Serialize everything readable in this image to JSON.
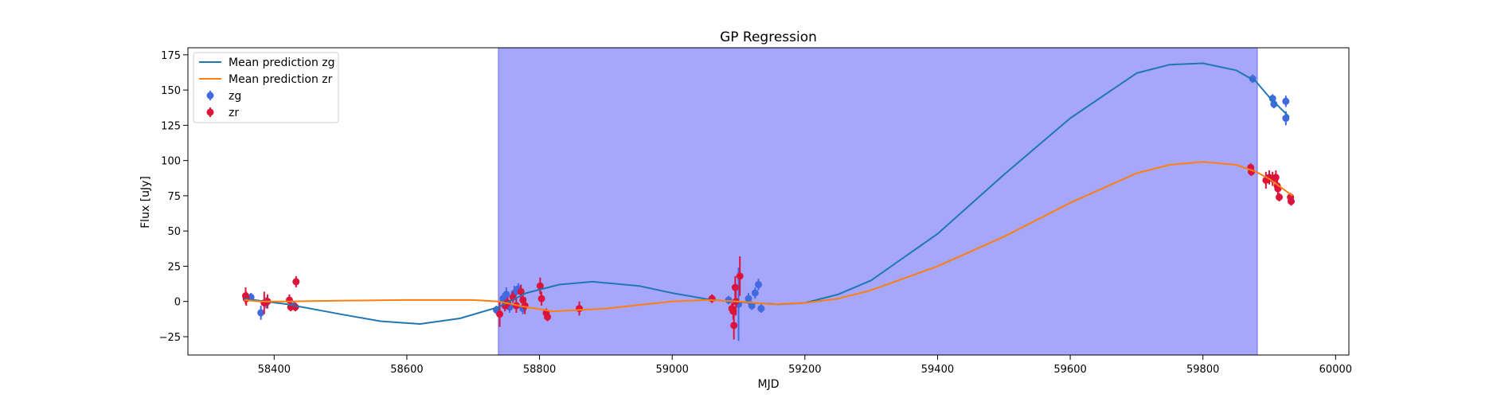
{
  "chart_data": {
    "type": "line",
    "title": "GP Regression",
    "xlabel": "MJD",
    "ylabel": "Flux [uJy]",
    "xlim": [
      58270,
      60020
    ],
    "ylim": [
      -38,
      180
    ],
    "xticks": [
      58400,
      58600,
      58800,
      59000,
      59200,
      59400,
      59600,
      59800,
      60000
    ],
    "xtick_labels": [
      "58400",
      "58600",
      "58800",
      "59000",
      "59200",
      "59400",
      "59600",
      "59800",
      "60000"
    ],
    "yticks": [
      -25,
      0,
      25,
      50,
      75,
      100,
      125,
      150,
      175
    ],
    "ytick_labels": [
      "−25",
      "0",
      "25",
      "50",
      "75",
      "100",
      "125",
      "150",
      "175"
    ],
    "grid": false,
    "legend_position": "top-left",
    "shaded_region": {
      "x": [
        58738,
        59882
      ],
      "color": "#a6a6fb"
    },
    "series": [
      {
        "name": "Mean prediction zg",
        "kind": "line",
        "color": "#1f77b4",
        "x": [
          58355,
          58420,
          58500,
          58560,
          58620,
          58680,
          58738,
          58780,
          58830,
          58880,
          58950,
          59000,
          59060,
          59120,
          59160,
          59200,
          59250,
          59300,
          59400,
          59500,
          59600,
          59700,
          59750,
          59800,
          59850,
          59880,
          59900,
          59930
        ],
        "y": [
          2,
          -2,
          -9,
          -14,
          -16,
          -12,
          -4,
          6,
          12,
          14,
          11,
          6,
          1,
          -1,
          -2,
          -1,
          5,
          15,
          48,
          90,
          130,
          162,
          168,
          169,
          164,
          156,
          145,
          131
        ]
      },
      {
        "name": "Mean prediction zr",
        "kind": "line",
        "color": "#ff7f0e",
        "x": [
          58355,
          58380,
          58420,
          58500,
          58600,
          58700,
          58738,
          58780,
          58820,
          58900,
          58960,
          59000,
          59050,
          59100,
          59150,
          59200,
          59250,
          59300,
          59400,
          59500,
          59600,
          59700,
          59750,
          59800,
          59850,
          59880,
          59900,
          59935
        ],
        "y": [
          1,
          0,
          0,
          0.5,
          1,
          1,
          0,
          -4,
          -7,
          -5,
          -2,
          0,
          1,
          0,
          -2,
          -1,
          2,
          8,
          25,
          46,
          70,
          91,
          97,
          99,
          97,
          92,
          87,
          75
        ]
      },
      {
        "name": "zg",
        "kind": "errorbar",
        "color": "#4169e1",
        "points": [
          {
            "x": 58365,
            "y": 3,
            "err": 3
          },
          {
            "x": 58380,
            "y": -8,
            "err": 5
          },
          {
            "x": 58388,
            "y": -1,
            "err": 4
          },
          {
            "x": 58430,
            "y": -3,
            "err": 3
          },
          {
            "x": 58735,
            "y": -6,
            "err": 3
          },
          {
            "x": 58745,
            "y": 2,
            "err": 4
          },
          {
            "x": 58750,
            "y": 5,
            "err": 5
          },
          {
            "x": 58755,
            "y": -4,
            "err": 4
          },
          {
            "x": 58762,
            "y": 6,
            "err": 5
          },
          {
            "x": 58768,
            "y": 9,
            "err": 4
          },
          {
            "x": 58775,
            "y": -5,
            "err": 4
          },
          {
            "x": 59085,
            "y": 1,
            "err": 3
          },
          {
            "x": 59100,
            "y": -2,
            "err": 26
          },
          {
            "x": 59115,
            "y": 2,
            "err": 4
          },
          {
            "x": 59120,
            "y": -3,
            "err": 3
          },
          {
            "x": 59125,
            "y": 6,
            "err": 4
          },
          {
            "x": 59130,
            "y": 12,
            "err": 4
          },
          {
            "x": 59134,
            "y": -5,
            "err": 3
          },
          {
            "x": 59875,
            "y": 158,
            "err": 3
          },
          {
            "x": 59905,
            "y": 144,
            "err": 3
          },
          {
            "x": 59907,
            "y": 140,
            "err": 3
          },
          {
            "x": 59925,
            "y": 142,
            "err": 4
          },
          {
            "x": 59925,
            "y": 130,
            "err": 5
          }
        ]
      },
      {
        "name": "zr",
        "kind": "errorbar",
        "color": "#dc143c",
        "points": [
          {
            "x": 58357,
            "y": 4,
            "err": 6
          },
          {
            "x": 58358,
            "y": 2,
            "err": 5
          },
          {
            "x": 58385,
            "y": -1,
            "err": 8
          },
          {
            "x": 58390,
            "y": 0,
            "err": 5
          },
          {
            "x": 58423,
            "y": 1,
            "err": 4
          },
          {
            "x": 58425,
            "y": -4,
            "err": 3
          },
          {
            "x": 58432,
            "y": -4,
            "err": 3
          },
          {
            "x": 58433,
            "y": 14,
            "err": 4
          },
          {
            "x": 58740,
            "y": -9,
            "err": 9
          },
          {
            "x": 58748,
            "y": -3,
            "err": 4
          },
          {
            "x": 58752,
            "y": -1,
            "err": 4
          },
          {
            "x": 58760,
            "y": 3,
            "err": 4
          },
          {
            "x": 58765,
            "y": -3,
            "err": 5
          },
          {
            "x": 58772,
            "y": 7,
            "err": 5
          },
          {
            "x": 58775,
            "y": 1,
            "err": 5
          },
          {
            "x": 58778,
            "y": -3,
            "err": 6
          },
          {
            "x": 58801,
            "y": 11,
            "err": 6
          },
          {
            "x": 58803,
            "y": 2,
            "err": 5
          },
          {
            "x": 58810,
            "y": -8,
            "err": 3
          },
          {
            "x": 58812,
            "y": -11,
            "err": 3
          },
          {
            "x": 58860,
            "y": -5,
            "err": 5
          },
          {
            "x": 59060,
            "y": 2,
            "err": 3
          },
          {
            "x": 59090,
            "y": -5,
            "err": 4
          },
          {
            "x": 59092,
            "y": -7,
            "err": 6
          },
          {
            "x": 59093,
            "y": -17,
            "err": 10
          },
          {
            "x": 59095,
            "y": 10,
            "err": 8
          },
          {
            "x": 59096,
            "y": 0,
            "err": 10
          },
          {
            "x": 59102,
            "y": 18,
            "err": 14
          },
          {
            "x": 59872,
            "y": 95,
            "err": 3
          },
          {
            "x": 59873,
            "y": 92,
            "err": 3
          },
          {
            "x": 59895,
            "y": 86,
            "err": 6
          },
          {
            "x": 59900,
            "y": 88,
            "err": 5
          },
          {
            "x": 59905,
            "y": 87,
            "err": 5
          },
          {
            "x": 59910,
            "y": 88,
            "err": 5
          },
          {
            "x": 59912,
            "y": 82,
            "err": 4
          },
          {
            "x": 59913,
            "y": 80,
            "err": 4
          },
          {
            "x": 59915,
            "y": 74,
            "err": 3
          },
          {
            "x": 59932,
            "y": 74,
            "err": 3
          },
          {
            "x": 59933,
            "y": 71,
            "err": 3
          }
        ]
      }
    ]
  }
}
